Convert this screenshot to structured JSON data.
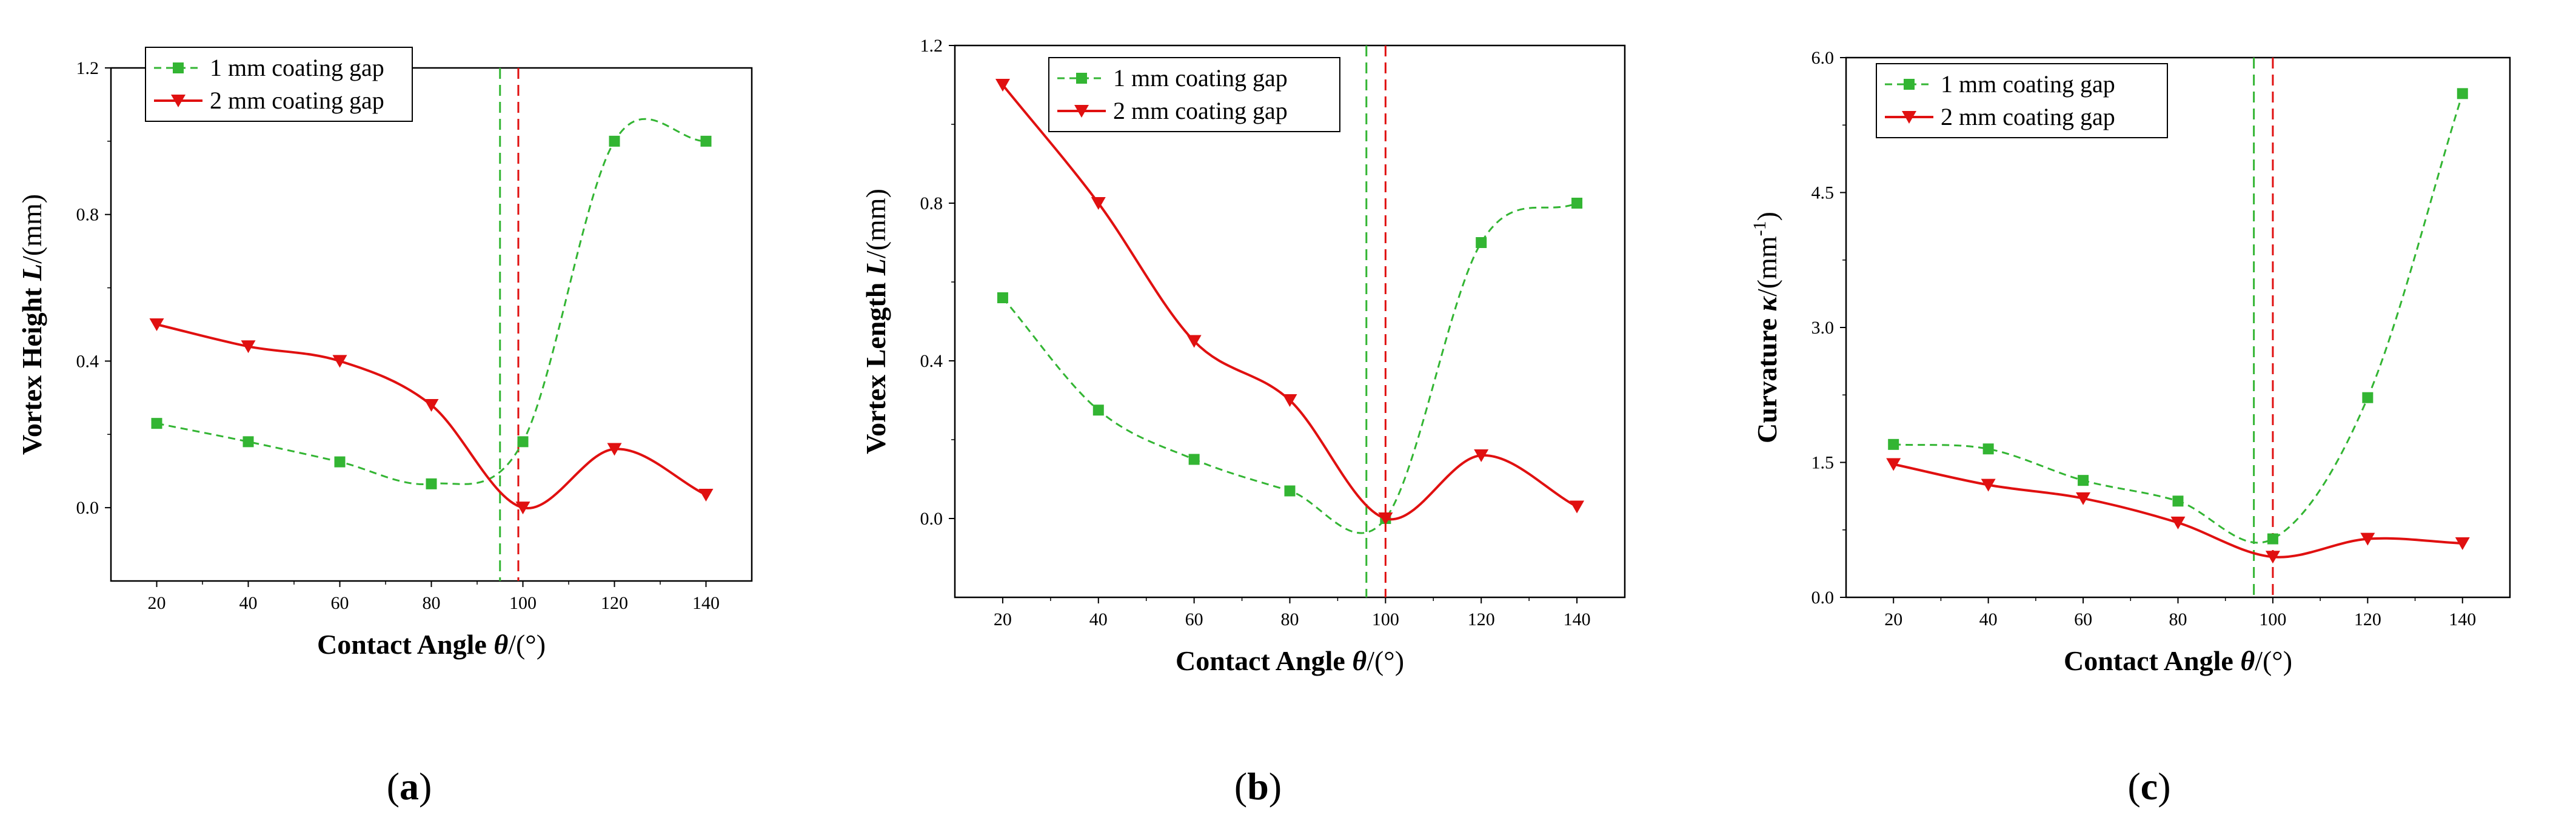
{
  "chart_data": [
    {
      "type": "line",
      "panel_label": "a",
      "xlabel": {
        "text": "Contact Angle ",
        "symbol": "θ",
        "unit": "/(°)"
      },
      "ylabel": {
        "text": "Vortex Height ",
        "symbol": "L",
        "unit": "/(mm)"
      },
      "xlim": [
        10,
        150
      ],
      "ylim": [
        -0.2,
        1.2
      ],
      "xticks": [
        20,
        40,
        60,
        80,
        100,
        120,
        140
      ],
      "xtick_labels": [
        "20",
        "40",
        "60",
        "80",
        "100",
        "120",
        "140"
      ],
      "yticks": [
        0.0,
        0.4,
        0.8,
        1.2
      ],
      "ytick_labels": [
        "0.0",
        "0.4",
        "0.8",
        "1.2"
      ],
      "vlines": [
        {
          "x": 95,
          "color": "#33b533"
        },
        {
          "x": 99,
          "color": "#e01010"
        }
      ],
      "legend_position": "top-left",
      "series": [
        {
          "name": "1 mm coating gap",
          "color": "#33b533",
          "marker": "square",
          "style": "dashed",
          "x": [
            20,
            40,
            60,
            80,
            100,
            120,
            140
          ],
          "values": [
            0.23,
            0.18,
            0.125,
            0.065,
            0.18,
            1.0,
            1.0
          ]
        },
        {
          "name": "2 mm coating gap",
          "color": "#e01010",
          "marker": "triangle-down",
          "style": "solid",
          "x": [
            20,
            40,
            60,
            80,
            100,
            120,
            140
          ],
          "values": [
            0.5,
            0.44,
            0.4,
            0.28,
            0.0,
            0.16,
            0.035
          ]
        }
      ]
    },
    {
      "type": "line",
      "panel_label": "b",
      "xlabel": {
        "text": "Contact Angle ",
        "symbol": "θ",
        "unit": "/(°)"
      },
      "ylabel": {
        "text": "Vortex Length ",
        "symbol": "L",
        "unit": "/(mm)"
      },
      "xlim": [
        10,
        150
      ],
      "ylim": [
        -0.2,
        1.2
      ],
      "xticks": [
        20,
        40,
        60,
        80,
        100,
        120,
        140
      ],
      "xtick_labels": [
        "20",
        "40",
        "60",
        "80",
        "100",
        "120",
        "140"
      ],
      "yticks": [
        0.0,
        0.4,
        0.8,
        1.2
      ],
      "ytick_labels": [
        "0.0",
        "0.4",
        "0.8",
        "1.2"
      ],
      "vlines": [
        {
          "x": 96,
          "color": "#33b533"
        },
        {
          "x": 100,
          "color": "#e01010"
        }
      ],
      "legend_position": "top-center",
      "series": [
        {
          "name": "1 mm coating gap",
          "color": "#33b533",
          "marker": "square",
          "style": "dashed",
          "x": [
            20,
            40,
            60,
            80,
            100,
            120,
            140
          ],
          "values": [
            0.56,
            0.275,
            0.15,
            0.07,
            0.0,
            0.7,
            0.8
          ]
        },
        {
          "name": "2 mm coating gap",
          "color": "#e01010",
          "marker": "triangle-down",
          "style": "solid",
          "x": [
            20,
            40,
            60,
            80,
            100,
            120,
            140
          ],
          "values": [
            1.1,
            0.8,
            0.45,
            0.3,
            0.0,
            0.16,
            0.03
          ]
        }
      ]
    },
    {
      "type": "line",
      "panel_label": "c",
      "xlabel": {
        "text": "Contact Angle ",
        "symbol": "θ",
        "unit": "/(°)"
      },
      "ylabel": {
        "text": "Curvature ",
        "symbol": "κ",
        "unit": "/(mm",
        "unit_sup": "-1",
        "unit_end": ")"
      },
      "xlim": [
        10,
        150
      ],
      "ylim": [
        0.0,
        6.0
      ],
      "xticks": [
        20,
        40,
        60,
        80,
        100,
        120,
        140
      ],
      "xtick_labels": [
        "20",
        "40",
        "60",
        "80",
        "100",
        "120",
        "140"
      ],
      "yticks": [
        0.0,
        1.5,
        3.0,
        4.5,
        6.0
      ],
      "ytick_labels": [
        "0.0",
        "1.5",
        "3.0",
        "4.5",
        "6.0"
      ],
      "vlines": [
        {
          "x": 96,
          "color": "#33b533"
        },
        {
          "x": 100,
          "color": "#e01010"
        }
      ],
      "legend_position": "top-left",
      "series": [
        {
          "name": "1 mm coating gap",
          "color": "#33b533",
          "marker": "square",
          "style": "dashed",
          "x": [
            20,
            40,
            60,
            80,
            100,
            120,
            140
          ],
          "values": [
            1.7,
            1.65,
            1.3,
            1.07,
            0.65,
            2.22,
            5.6
          ]
        },
        {
          "name": "2 mm coating gap",
          "color": "#e01010",
          "marker": "triangle-down",
          "style": "solid",
          "x": [
            20,
            40,
            60,
            80,
            100,
            120,
            140
          ],
          "values": [
            1.48,
            1.25,
            1.1,
            0.83,
            0.45,
            0.65,
            0.6
          ]
        }
      ]
    }
  ]
}
